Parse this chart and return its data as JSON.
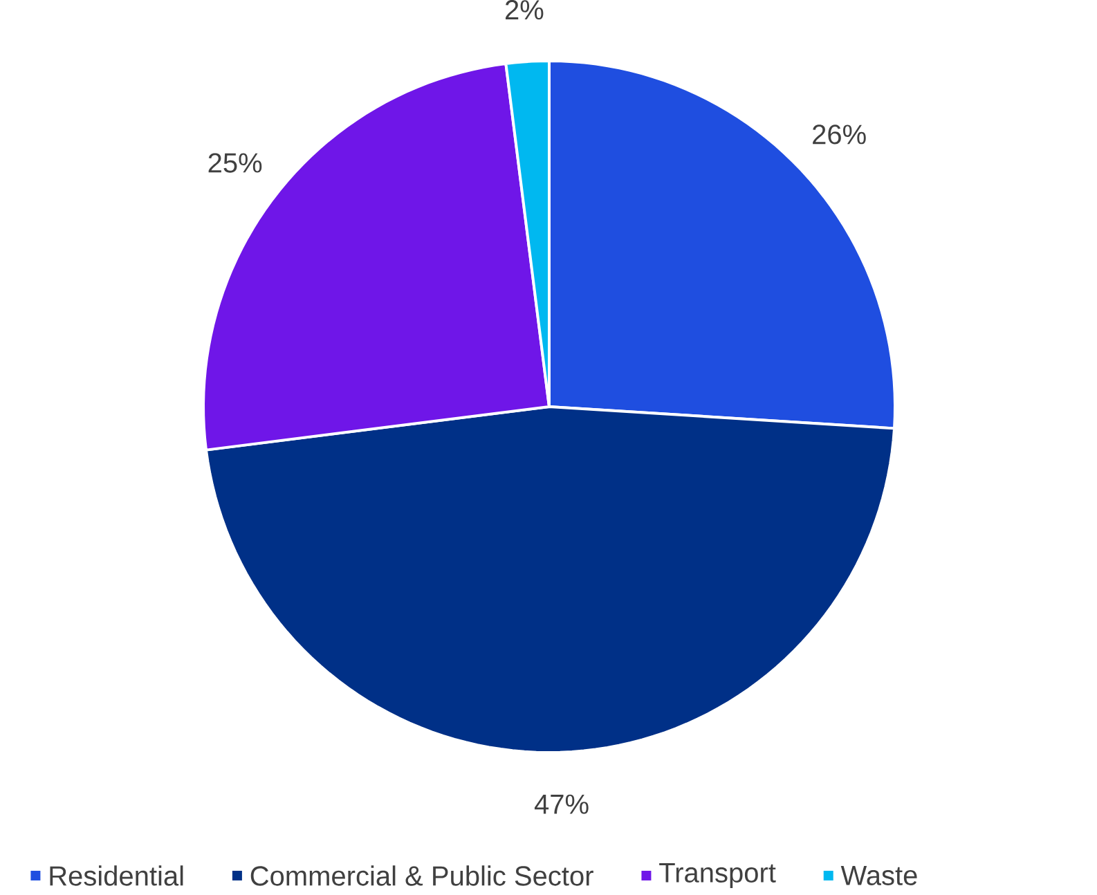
{
  "chart_data": {
    "type": "pie",
    "categories": [
      "Residential",
      "Commercial & Public Sector",
      "Transport",
      "Waste"
    ],
    "values": [
      26,
      47,
      25,
      2
    ],
    "colors": [
      "#1f4ee0",
      "#003087",
      "#6f16e8",
      "#00b8f0"
    ],
    "value_labels": [
      "26%",
      "47%",
      "25%",
      "2%"
    ],
    "legend": "bottom"
  }
}
